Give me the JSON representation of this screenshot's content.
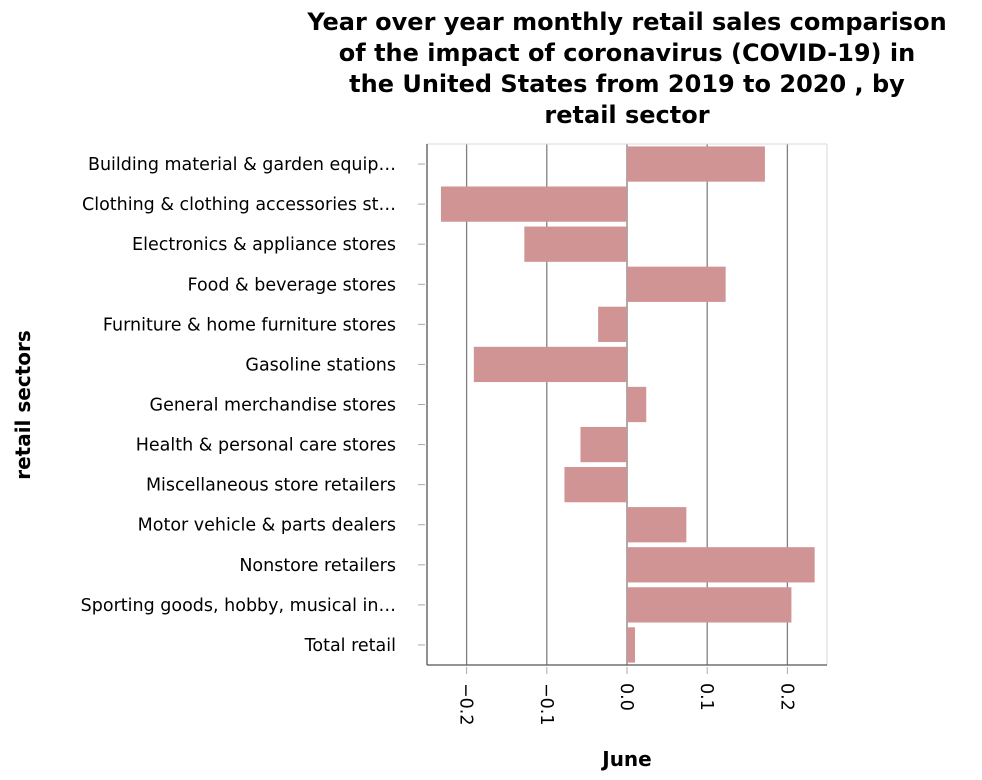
{
  "chart_data": {
    "type": "bar",
    "orientation": "horizontal",
    "title_lines": [
      "Year over year monthly retail sales comparison",
      "of the impact of coronavirus (COVID-19) in",
      "the United States from 2019 to 2020 , by",
      "retail sector"
    ],
    "xlabel": "June",
    "ylabel": "retail sectors",
    "xlim": [
      -0.25,
      0.25
    ],
    "xticks": [
      -0.2,
      -0.1,
      0.0,
      0.1,
      0.2
    ],
    "xtick_labels": [
      "−0.2",
      "−0.1",
      "0.0",
      "0.1",
      "0.2"
    ],
    "grid": "vertical",
    "bar_color": "#d09494",
    "categories": [
      "Building material & garden equip…",
      "Clothing & clothing accessories  st…",
      "Electronics & appliance stores",
      "Food & beverage stores",
      "Furniture & home furniture stores",
      "Gasoline stations",
      "General merchandise stores",
      "Health & personal care stores",
      "Miscellaneous store retailers",
      "Motor vehicle & parts dealers",
      "Nonstore retailers",
      "Sporting goods, hobby, musical in…",
      "Total retail"
    ],
    "values": [
      0.172,
      -0.232,
      -0.128,
      0.123,
      -0.036,
      -0.191,
      0.024,
      -0.058,
      -0.078,
      0.074,
      0.234,
      0.205,
      0.01
    ]
  }
}
